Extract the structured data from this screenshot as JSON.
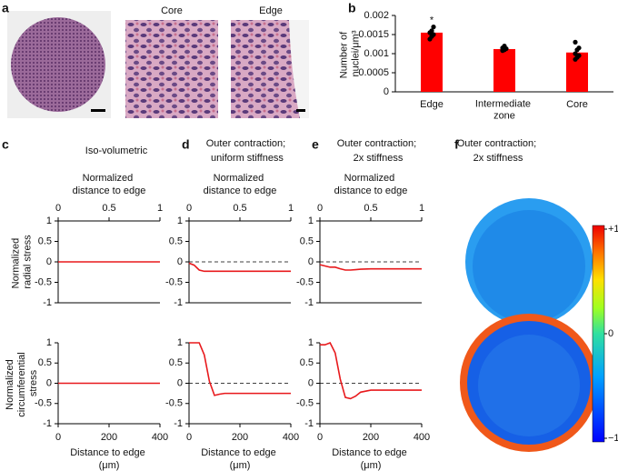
{
  "panel_labels": [
    "a",
    "b",
    "c",
    "d",
    "e",
    "f"
  ],
  "image_labels": [
    "Core",
    "Edge"
  ],
  "chart_data": [
    {
      "type": "bar",
      "ylabel": "Number of nuclei/μm³",
      "categories": [
        "Edge",
        "Intermediate zone",
        "Core"
      ],
      "values": [
        0.00155,
        0.00112,
        0.00103
      ],
      "color": "#ff0000",
      "points": [
        [
          0.00138,
          0.00145,
          0.0015,
          0.00155,
          0.0016,
          0.0017
        ],
        [
          0.00108,
          0.0011,
          0.00113,
          0.00115,
          0.0012
        ],
        [
          0.00085,
          0.0009,
          0.00095,
          0.001,
          0.0011,
          0.00115,
          0.0013
        ]
      ],
      "point_color": "#000000",
      "annotation": "*",
      "ylim": [
        0,
        0.002
      ],
      "yticks": [
        0,
        0.0005,
        0.001,
        0.0015,
        0.002
      ]
    },
    {
      "type": "line",
      "title": "Iso-volumetric",
      "x2label": "Normalized distance to edge",
      "ylabel": "Normalized radial stress",
      "x": [
        0,
        20,
        40,
        60,
        80,
        100,
        120,
        140,
        160,
        200,
        300,
        400
      ],
      "xlim": [
        0,
        400
      ],
      "x2lim": [
        0,
        1
      ],
      "x2ticks": [
        0,
        0.5,
        1
      ],
      "ylim": [
        -1,
        1
      ],
      "yticks": [
        -1,
        -0.5,
        0,
        0.5,
        1
      ],
      "series": [
        {
          "color": "#e8191c",
          "values": [
            0,
            0,
            0,
            0,
            0,
            0,
            0,
            0,
            0,
            0,
            0,
            0
          ]
        }
      ]
    },
    {
      "type": "line",
      "xlabel": "Distance to edge (μm)",
      "ylabel": "Normalized circumferential stress",
      "x": [
        0,
        20,
        40,
        60,
        80,
        100,
        120,
        140,
        160,
        200,
        300,
        400
      ],
      "xlim": [
        0,
        400
      ],
      "xticks": [
        0,
        200,
        400
      ],
      "ylim": [
        -1,
        1
      ],
      "yticks": [
        -1,
        -0.5,
        0,
        0.5,
        1
      ],
      "series": [
        {
          "color": "#e8191c",
          "values": [
            0,
            0,
            0,
            0,
            0,
            0,
            0,
            0,
            0,
            0,
            0,
            0
          ]
        }
      ]
    },
    {
      "type": "line",
      "title": "Outer contraction; uniform stiffness",
      "x2label": "Normalized distance to edge",
      "x": [
        0,
        20,
        40,
        60,
        80,
        100,
        120,
        140,
        160,
        200,
        300,
        400
      ],
      "xlim": [
        0,
        400
      ],
      "x2lim": [
        0,
        1
      ],
      "x2ticks": [
        0,
        0.5,
        1
      ],
      "ylim": [
        -1,
        1
      ],
      "yticks": [
        -1,
        -0.5,
        0,
        0.5,
        1
      ],
      "hline": 0,
      "series": [
        {
          "color": "#e8191c",
          "values": [
            -0.03,
            -0.08,
            -0.2,
            -0.23,
            -0.23,
            -0.23,
            -0.23,
            -0.23,
            -0.23,
            -0.23,
            -0.23,
            -0.23
          ]
        }
      ]
    },
    {
      "type": "line",
      "xlabel": "Distance to edge (μm)",
      "x": [
        0,
        20,
        40,
        60,
        80,
        100,
        120,
        140,
        160,
        200,
        300,
        400
      ],
      "xlim": [
        0,
        400
      ],
      "xticks": [
        0,
        200,
        400
      ],
      "ylim": [
        -1,
        1
      ],
      "yticks": [
        -1,
        -0.5,
        0,
        0.5,
        1
      ],
      "hline": 0,
      "series": [
        {
          "color": "#e8191c",
          "values": [
            1,
            1,
            1,
            0.7,
            0.05,
            -0.3,
            -0.27,
            -0.25,
            -0.25,
            -0.25,
            -0.25,
            -0.25
          ]
        }
      ]
    },
    {
      "type": "line",
      "title": "Outer contraction; 2x stiffness",
      "x2label": "Normalized distance to edge",
      "x": [
        0,
        20,
        40,
        60,
        80,
        100,
        120,
        140,
        160,
        200,
        300,
        400
      ],
      "xlim": [
        0,
        400
      ],
      "x2lim": [
        0,
        1
      ],
      "x2ticks": [
        0,
        0.5,
        1
      ],
      "ylim": [
        -1,
        1
      ],
      "yticks": [
        -1,
        -0.5,
        0,
        0.5,
        1
      ],
      "hline": 0,
      "series": [
        {
          "color": "#e8191c",
          "values": [
            -0.07,
            -0.1,
            -0.13,
            -0.13,
            -0.17,
            -0.2,
            -0.2,
            -0.19,
            -0.18,
            -0.17,
            -0.17,
            -0.17
          ]
        }
      ]
    },
    {
      "type": "line",
      "xlabel": "Distance to edge (μm)",
      "x": [
        0,
        20,
        40,
        60,
        80,
        100,
        120,
        140,
        160,
        200,
        300,
        400
      ],
      "xlim": [
        0,
        400
      ],
      "xticks": [
        0,
        200,
        400
      ],
      "ylim": [
        -1,
        1
      ],
      "yticks": [
        -1,
        -0.5,
        0,
        0.5,
        1
      ],
      "hline": 0,
      "series": [
        {
          "color": "#e8191c",
          "values": [
            0.95,
            0.95,
            1,
            0.75,
            0.1,
            -0.35,
            -0.38,
            -0.32,
            -0.22,
            -0.17,
            -0.17,
            -0.17
          ]
        }
      ]
    },
    {
      "type": "colorbar",
      "title": "Outer contraction; 2x stiffness",
      "clim": [
        -1,
        1
      ],
      "cticks": [
        {
          "value": 1,
          "label": "+1"
        },
        0,
        {
          "value": -1,
          "label": "−1"
        }
      ]
    }
  ]
}
